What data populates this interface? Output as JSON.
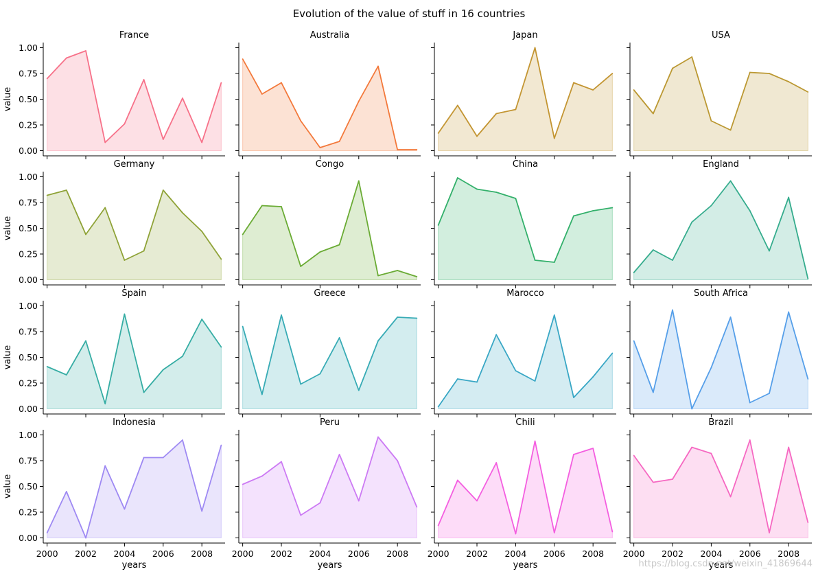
{
  "chart_data": {
    "type": "area",
    "title": "Evolution of the value of stuff in 16 countries",
    "xlabel": "years",
    "ylabel": "value",
    "x": [
      2000,
      2001,
      2002,
      2003,
      2004,
      2005,
      2006,
      2007,
      2008,
      2009
    ],
    "xticks": [
      "2000",
      "2002",
      "2004",
      "2006",
      "2008"
    ],
    "yticks": [
      "0.00",
      "0.25",
      "0.50",
      "0.75",
      "1.00"
    ],
    "ylim": [
      -0.05,
      1.05
    ],
    "xlim": [
      1999.8,
      2009.2
    ],
    "layout": "4x4 grid, shared axes",
    "series": [
      {
        "name": "France",
        "color": "#f77189",
        "values": [
          0.7,
          0.9,
          0.97,
          0.08,
          0.26,
          0.69,
          0.11,
          0.51,
          0.08,
          0.66
        ]
      },
      {
        "name": "Australia",
        "color": "#f3793b",
        "values": [
          0.89,
          0.55,
          0.66,
          0.29,
          0.03,
          0.09,
          0.48,
          0.82,
          0.01,
          0.01
        ]
      },
      {
        "name": "Japan",
        "color": "#c39532",
        "values": [
          0.17,
          0.44,
          0.14,
          0.36,
          0.4,
          1.0,
          0.12,
          0.66,
          0.59,
          0.75
        ]
      },
      {
        "name": "USA",
        "color": "#bb9832",
        "values": [
          0.59,
          0.36,
          0.8,
          0.91,
          0.29,
          0.2,
          0.76,
          0.75,
          0.67,
          0.57
        ]
      },
      {
        "name": "Germany",
        "color": "#8ea236",
        "values": [
          0.82,
          0.87,
          0.44,
          0.7,
          0.19,
          0.28,
          0.87,
          0.65,
          0.47,
          0.2
        ]
      },
      {
        "name": "Congo",
        "color": "#6aab34",
        "values": [
          0.44,
          0.72,
          0.71,
          0.13,
          0.27,
          0.34,
          0.96,
          0.04,
          0.09,
          0.03
        ]
      },
      {
        "name": "China",
        "color": "#33b06b",
        "values": [
          0.53,
          0.99,
          0.88,
          0.85,
          0.79,
          0.19,
          0.17,
          0.62,
          0.67,
          0.7
        ]
      },
      {
        "name": "England",
        "color": "#35ac8d",
        "values": [
          0.07,
          0.29,
          0.19,
          0.56,
          0.72,
          0.96,
          0.67,
          0.28,
          0.8,
          0.01
        ]
      },
      {
        "name": "Spain",
        "color": "#36ada4",
        "values": [
          0.41,
          0.33,
          0.66,
          0.05,
          0.92,
          0.16,
          0.38,
          0.51,
          0.87,
          0.6
        ]
      },
      {
        "name": "Greece",
        "color": "#37abb5",
        "values": [
          0.8,
          0.14,
          0.91,
          0.24,
          0.34,
          0.69,
          0.18,
          0.66,
          0.89,
          0.88
        ]
      },
      {
        "name": "Marocco",
        "color": "#39a7c5",
        "values": [
          0.02,
          0.29,
          0.26,
          0.72,
          0.37,
          0.27,
          0.91,
          0.11,
          0.31,
          0.54
        ]
      },
      {
        "name": "South Africa",
        "color": "#569fe9",
        "values": [
          0.66,
          0.16,
          0.96,
          0.0,
          0.4,
          0.89,
          0.06,
          0.15,
          0.94,
          0.29
        ]
      },
      {
        "name": "Indonesia",
        "color": "#9e89f3",
        "values": [
          0.05,
          0.45,
          0.0,
          0.7,
          0.28,
          0.78,
          0.78,
          0.95,
          0.26,
          0.9
        ]
      },
      {
        "name": "Peru",
        "color": "#cc7af4",
        "values": [
          0.52,
          0.6,
          0.74,
          0.22,
          0.34,
          0.81,
          0.36,
          0.98,
          0.75,
          0.3
        ]
      },
      {
        "name": "Chili",
        "color": "#f45ee0",
        "values": [
          0.12,
          0.56,
          0.36,
          0.73,
          0.04,
          0.94,
          0.05,
          0.81,
          0.87,
          0.06
        ]
      },
      {
        "name": "Brazil",
        "color": "#f668c2",
        "values": [
          0.8,
          0.54,
          0.57,
          0.88,
          0.82,
          0.4,
          0.95,
          0.05,
          0.88,
          0.15
        ]
      }
    ]
  },
  "watermark": "https://blog.csdn.net/weixin_41869644"
}
